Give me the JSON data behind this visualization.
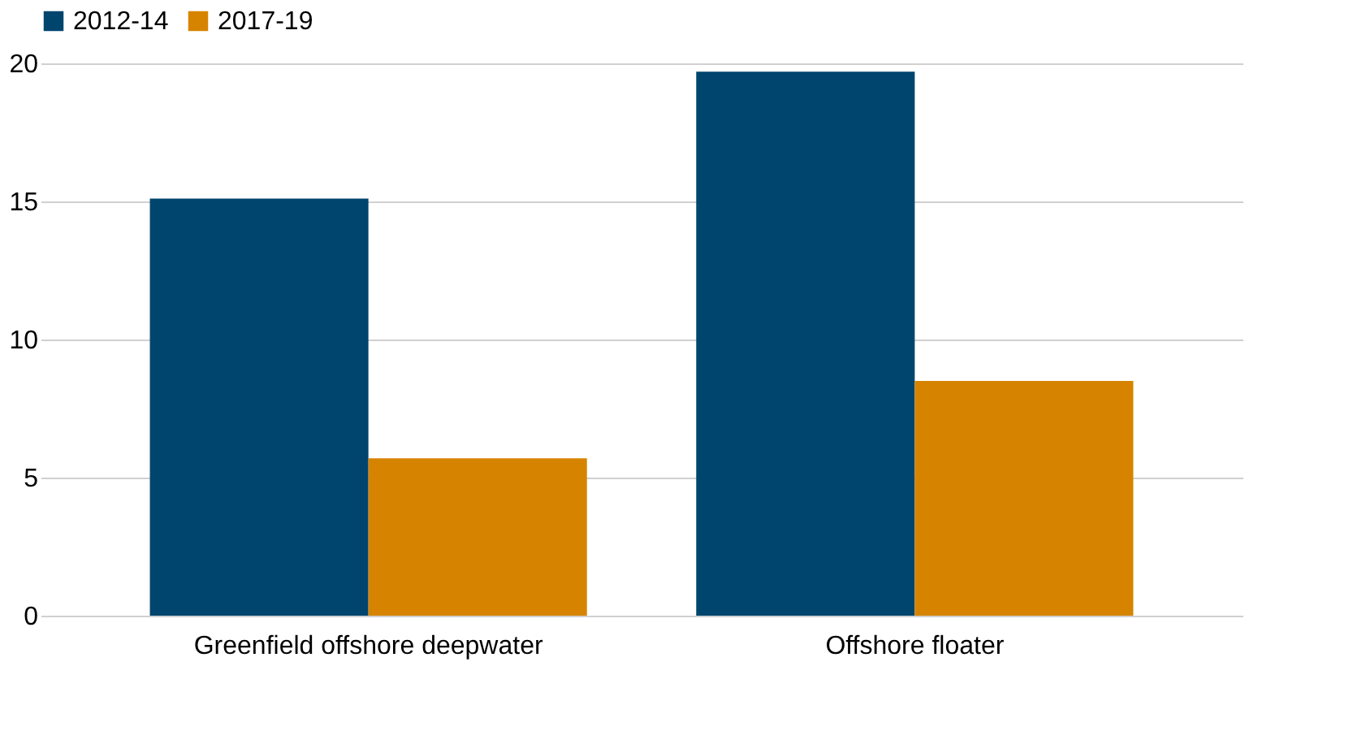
{
  "chart_data": {
    "type": "bar",
    "categories": [
      "Greenfield offshore deepwater",
      "Offshore floater"
    ],
    "series": [
      {
        "name": "2012-14",
        "color": "#00456e",
        "values": [
          15.1,
          19.7
        ]
      },
      {
        "name": "2017-19",
        "color": "#d68400",
        "values": [
          5.7,
          8.5
        ]
      }
    ],
    "ylim": [
      0,
      20
    ],
    "yticks": [
      0,
      5,
      10,
      15,
      20
    ],
    "grid": "y",
    "legend": "top"
  }
}
